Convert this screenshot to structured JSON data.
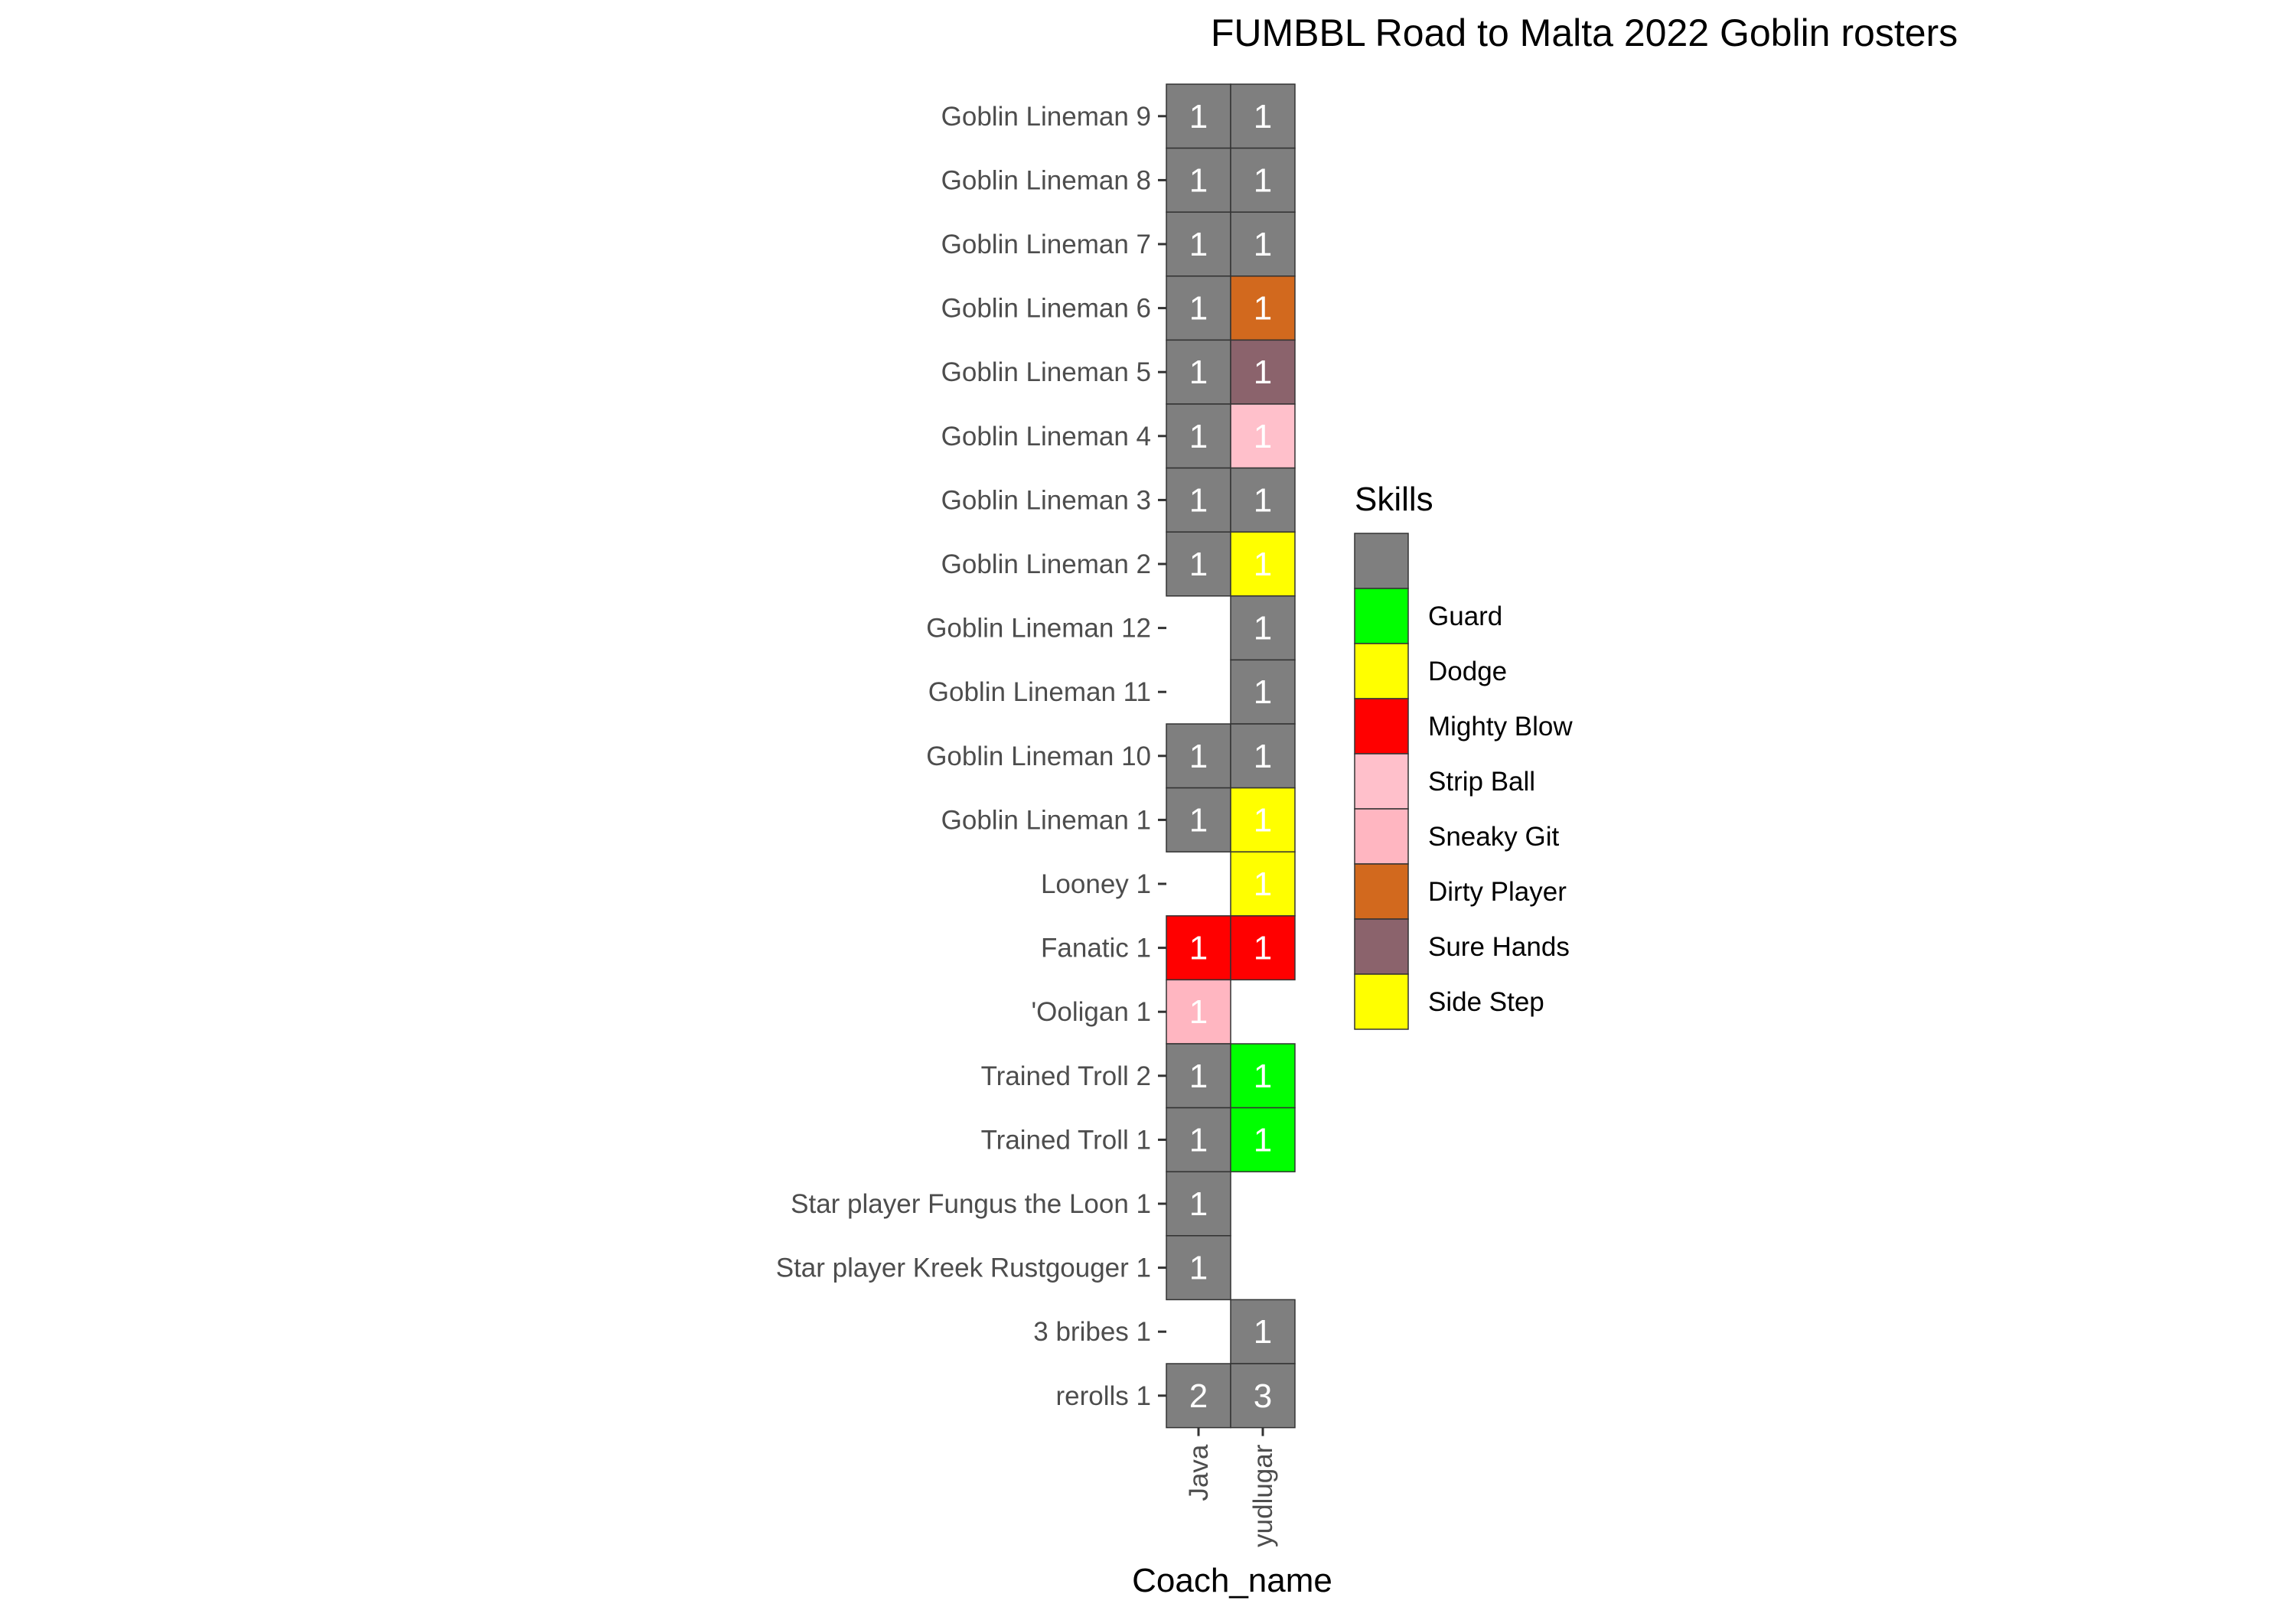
{
  "chart_data": {
    "type": "heatmap",
    "title": "FUMBBL Road to Malta 2022 Goblin rosters",
    "xlabel": "Coach_name",
    "ylabel": "",
    "x": [
      "Java",
      "yudlugar"
    ],
    "y": [
      "Goblin Lineman 9",
      "Goblin Lineman 8",
      "Goblin Lineman 7",
      "Goblin Lineman 6",
      "Goblin Lineman 5",
      "Goblin Lineman 4",
      "Goblin Lineman 3",
      "Goblin Lineman 2",
      "Goblin Lineman 12",
      "Goblin Lineman 11",
      "Goblin Lineman 10",
      "Goblin Lineman 1",
      "Looney 1",
      "Fanatic 1",
      "'Ooligan 1",
      "Trained Troll 2",
      "Trained Troll 1",
      "Star player Fungus the Loon 1",
      "Star player Kreek Rustgouger 1",
      "3 bribes 1",
      "rerolls 1"
    ],
    "legend": {
      "title": "Skills",
      "position": "right",
      "entries": [
        {
          "label": "",
          "color": "#7f7f7f"
        },
        {
          "label": "Guard",
          "color": "#00ff00"
        },
        {
          "label": "Dodge",
          "color": "#ffff00"
        },
        {
          "label": "Mighty Blow",
          "color": "#ff0000"
        },
        {
          "label": "Strip Ball",
          "color": "#ffc0cb"
        },
        {
          "label": "Sneaky Git",
          "color": "#ffb6c1"
        },
        {
          "label": "Dirty Player",
          "color": "#d2691e"
        },
        {
          "label": "Sure Hands",
          "color": "#8b636c"
        },
        {
          "label": "Side Step",
          "color": "#ffff00"
        }
      ]
    },
    "cells": [
      {
        "x": "Java",
        "y": "Goblin Lineman 9",
        "value": 1,
        "skill": ""
      },
      {
        "x": "yudlugar",
        "y": "Goblin Lineman 9",
        "value": 1,
        "skill": ""
      },
      {
        "x": "Java",
        "y": "Goblin Lineman 8",
        "value": 1,
        "skill": ""
      },
      {
        "x": "yudlugar",
        "y": "Goblin Lineman 8",
        "value": 1,
        "skill": ""
      },
      {
        "x": "Java",
        "y": "Goblin Lineman 7",
        "value": 1,
        "skill": ""
      },
      {
        "x": "yudlugar",
        "y": "Goblin Lineman 7",
        "value": 1,
        "skill": ""
      },
      {
        "x": "Java",
        "y": "Goblin Lineman 6",
        "value": 1,
        "skill": ""
      },
      {
        "x": "yudlugar",
        "y": "Goblin Lineman 6",
        "value": 1,
        "skill": "Dirty Player"
      },
      {
        "x": "Java",
        "y": "Goblin Lineman 5",
        "value": 1,
        "skill": ""
      },
      {
        "x": "yudlugar",
        "y": "Goblin Lineman 5",
        "value": 1,
        "skill": "Sure Hands"
      },
      {
        "x": "Java",
        "y": "Goblin Lineman 4",
        "value": 1,
        "skill": ""
      },
      {
        "x": "yudlugar",
        "y": "Goblin Lineman 4",
        "value": 1,
        "skill": "Strip Ball"
      },
      {
        "x": "Java",
        "y": "Goblin Lineman 3",
        "value": 1,
        "skill": ""
      },
      {
        "x": "yudlugar",
        "y": "Goblin Lineman 3",
        "value": 1,
        "skill": ""
      },
      {
        "x": "Java",
        "y": "Goblin Lineman 2",
        "value": 1,
        "skill": ""
      },
      {
        "x": "yudlugar",
        "y": "Goblin Lineman 2",
        "value": 1,
        "skill": "Dodge"
      },
      {
        "x": "yudlugar",
        "y": "Goblin Lineman 12",
        "value": 1,
        "skill": ""
      },
      {
        "x": "yudlugar",
        "y": "Goblin Lineman 11",
        "value": 1,
        "skill": ""
      },
      {
        "x": "Java",
        "y": "Goblin Lineman 10",
        "value": 1,
        "skill": ""
      },
      {
        "x": "yudlugar",
        "y": "Goblin Lineman 10",
        "value": 1,
        "skill": ""
      },
      {
        "x": "Java",
        "y": "Goblin Lineman 1",
        "value": 1,
        "skill": ""
      },
      {
        "x": "yudlugar",
        "y": "Goblin Lineman 1",
        "value": 1,
        "skill": "Dodge"
      },
      {
        "x": "yudlugar",
        "y": "Looney 1",
        "value": 1,
        "skill": "Dodge"
      },
      {
        "x": "Java",
        "y": "Fanatic 1",
        "value": 1,
        "skill": "Mighty Blow"
      },
      {
        "x": "yudlugar",
        "y": "Fanatic 1",
        "value": 1,
        "skill": "Mighty Blow"
      },
      {
        "x": "Java",
        "y": "'Ooligan 1",
        "value": 1,
        "skill": "Sneaky Git"
      },
      {
        "x": "Java",
        "y": "Trained Troll 2",
        "value": 1,
        "skill": ""
      },
      {
        "x": "yudlugar",
        "y": "Trained Troll 2",
        "value": 1,
        "skill": "Guard"
      },
      {
        "x": "Java",
        "y": "Trained Troll 1",
        "value": 1,
        "skill": ""
      },
      {
        "x": "yudlugar",
        "y": "Trained Troll 1",
        "value": 1,
        "skill": "Guard"
      },
      {
        "x": "Java",
        "y": "Star player Fungus the Loon 1",
        "value": 1,
        "skill": ""
      },
      {
        "x": "Java",
        "y": "Star player Kreek Rustgouger 1",
        "value": 1,
        "skill": ""
      },
      {
        "x": "yudlugar",
        "y": "3 bribes 1",
        "value": 1,
        "skill": ""
      },
      {
        "x": "Java",
        "y": "rerolls 1",
        "value": 2,
        "skill": ""
      },
      {
        "x": "yudlugar",
        "y": "rerolls 1",
        "value": 3,
        "skill": ""
      }
    ]
  }
}
